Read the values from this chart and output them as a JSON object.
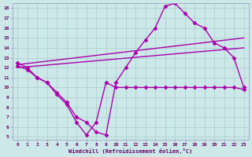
{
  "background_color": "#cce8e8",
  "grid_color": "#aacccc",
  "line_color": "#aa00aa",
  "xlabel": "Windchill (Refroidissement éolien,°C)",
  "xlim": [
    -0.5,
    23.5
  ],
  "ylim": [
    4.7,
    18.5
  ],
  "yticks": [
    5,
    6,
    7,
    8,
    9,
    10,
    11,
    12,
    13,
    14,
    15,
    16,
    17,
    18
  ],
  "xticks": [
    0,
    1,
    2,
    3,
    4,
    5,
    6,
    7,
    8,
    9,
    10,
    11,
    12,
    13,
    14,
    15,
    16,
    17,
    18,
    19,
    20,
    21,
    22,
    23
  ],
  "curve1_x": [
    0,
    1,
    2,
    3,
    4,
    5,
    6,
    7,
    8,
    9,
    10,
    11,
    12,
    13,
    14,
    15,
    16,
    17,
    18,
    19,
    20,
    21,
    22,
    23
  ],
  "curve1_y": [
    12.5,
    12.0,
    11.0,
    10.5,
    9.5,
    8.5,
    7.0,
    6.5,
    5.5,
    5.2,
    10.5,
    12.0,
    13.5,
    14.8,
    16.0,
    18.2,
    18.5,
    17.5,
    16.5,
    16.0,
    14.5,
    14.0,
    13.0,
    10.0
  ],
  "curve2_x": [
    0,
    1,
    2,
    3,
    4,
    5,
    6,
    7,
    8,
    9,
    10,
    11,
    12,
    13,
    14,
    15,
    16,
    17,
    18,
    19,
    20,
    21,
    22,
    23
  ],
  "curve2_y": [
    12.2,
    11.8,
    11.0,
    10.5,
    9.3,
    8.3,
    6.5,
    5.2,
    6.5,
    10.5,
    10.0,
    10.0,
    10.0,
    10.0,
    10.0,
    10.0,
    10.0,
    10.0,
    10.0,
    10.0,
    10.0,
    10.0,
    10.0,
    9.8
  ],
  "regline1_x": [
    0,
    23
  ],
  "regline1_y": [
    12.0,
    14.0
  ],
  "regline2_x": [
    0,
    23
  ],
  "regline2_y": [
    12.3,
    15.0
  ],
  "marker": "D",
  "markersize": 2.5,
  "linewidth": 1.0
}
